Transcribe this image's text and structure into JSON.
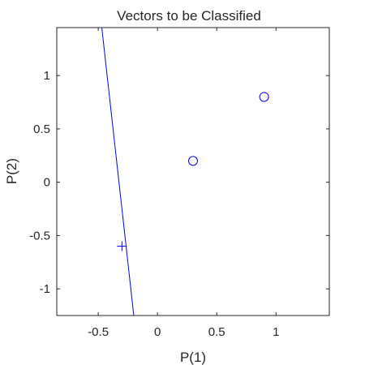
{
  "chart_data": {
    "type": "scatter",
    "title": "Vectors to be Classified",
    "xlabel": "P(1)",
    "ylabel": "P(2)",
    "xlim": [
      -0.85,
      1.45
    ],
    "ylim": [
      -1.25,
      1.45
    ],
    "xticks": [
      -0.5,
      0,
      0.5,
      1
    ],
    "xtick_labels": [
      "-0.5",
      "0",
      "0.5",
      "1"
    ],
    "yticks": [
      -1,
      -0.5,
      0,
      0.5,
      1
    ],
    "ytick_labels": [
      "-1",
      "-0.5",
      "0",
      "0.5",
      "1"
    ],
    "grid": false,
    "series": [
      {
        "marker": "circle",
        "color": "#0000ff",
        "points": [
          [
            0.3,
            0.2
          ],
          [
            0.9,
            0.8
          ]
        ]
      },
      {
        "marker": "plus",
        "color": "#0000ff",
        "points": [
          [
            -0.3,
            -0.6
          ]
        ]
      }
    ],
    "decision_boundary": {
      "type": "line",
      "color": "#0000ff",
      "points": [
        [
          -0.47,
          1.45
        ],
        [
          -0.2,
          -1.25
        ]
      ]
    },
    "colors": {
      "axes": "#262626",
      "background": "#ffffff"
    }
  }
}
